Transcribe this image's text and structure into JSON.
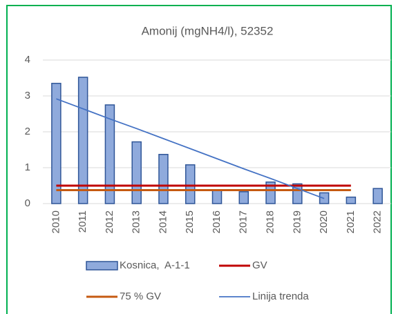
{
  "chart_data": {
    "type": "bar",
    "title": "Amonij (mgNH4/l), 52352",
    "categories": [
      "2010",
      "2011",
      "2012",
      "2013",
      "2014",
      "2015",
      "2016",
      "2017",
      "2018",
      "2019",
      "2020",
      "2021",
      "2022"
    ],
    "series": [
      {
        "name": "Kosnica,  A-1-1",
        "type": "bar",
        "color": "#8faadc",
        "border": "#2f5597",
        "values": [
          3.35,
          3.52,
          2.75,
          1.72,
          1.37,
          1.08,
          0.38,
          0.33,
          0.6,
          0.55,
          0.3,
          0.18,
          0.42
        ]
      },
      {
        "name": "GV",
        "type": "line",
        "color": "#c00000",
        "values": [
          0.5,
          0.5,
          0.5,
          0.5,
          0.5,
          0.5,
          0.5,
          0.5,
          0.5,
          0.5,
          0.5,
          0.5,
          null
        ]
      },
      {
        "name": "75 % GV",
        "type": "line",
        "color": "#c55a11",
        "values": [
          0.375,
          0.375,
          0.375,
          0.375,
          0.375,
          0.375,
          0.375,
          0.375,
          0.375,
          0.375,
          0.375,
          0.375,
          null
        ]
      },
      {
        "name": "Linija trenda",
        "type": "line",
        "color": "#4472c4",
        "values": [
          2.92,
          2.64,
          2.36,
          2.09,
          1.81,
          1.53,
          1.25,
          0.97,
          0.7,
          0.42,
          0.14,
          null,
          null
        ]
      }
    ],
    "ylim": [
      0,
      4
    ],
    "yticks": [
      0,
      1,
      2,
      3,
      4
    ],
    "grid": true
  }
}
